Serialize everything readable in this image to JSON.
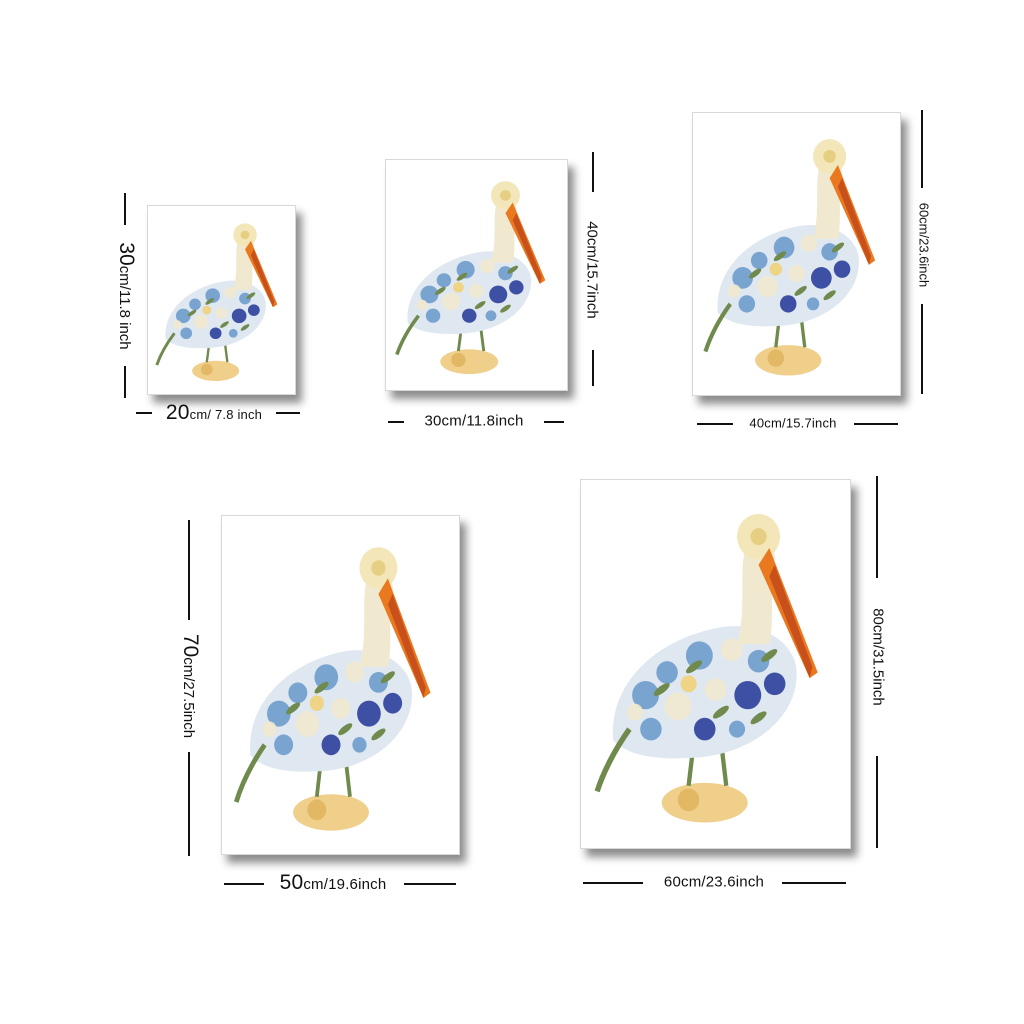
{
  "products": [
    {
      "id": "20x30",
      "width_label_big": "20",
      "width_label_rest": "cm/ 7.8 inch",
      "height_label_big": "30",
      "height_label_rest": "cm/11.8 inch"
    },
    {
      "id": "30x40",
      "width_label_big": "",
      "width_label_rest": "30cm/11.8inch",
      "height_label_big": "",
      "height_label_rest": "40cm/15.7inch"
    },
    {
      "id": "40x60",
      "width_label_big": "",
      "width_label_rest": "40cm/15.7inch",
      "height_label_big": "",
      "height_label_rest": "60cm/23.6inch"
    },
    {
      "id": "50x70",
      "width_label_big": "50",
      "width_label_rest": "cm/19.6inch",
      "height_label_big": "70",
      "height_label_rest": "cm/27.5inch"
    },
    {
      "id": "60x80",
      "width_label_big": "",
      "width_label_rest": "60cm/23.6inch",
      "height_label_big": "",
      "height_label_rest": "80cm/31.5inch"
    }
  ],
  "colors": {
    "beak": "#e9781f",
    "beak_dark": "#c8501a",
    "head": "#f3e6b8",
    "flower_blue": "#6f9ccc",
    "flower_navy": "#2c3f9a",
    "flower_cream": "#f1e9cf",
    "leaf": "#6f8a4c",
    "base": "#efcf8a"
  }
}
